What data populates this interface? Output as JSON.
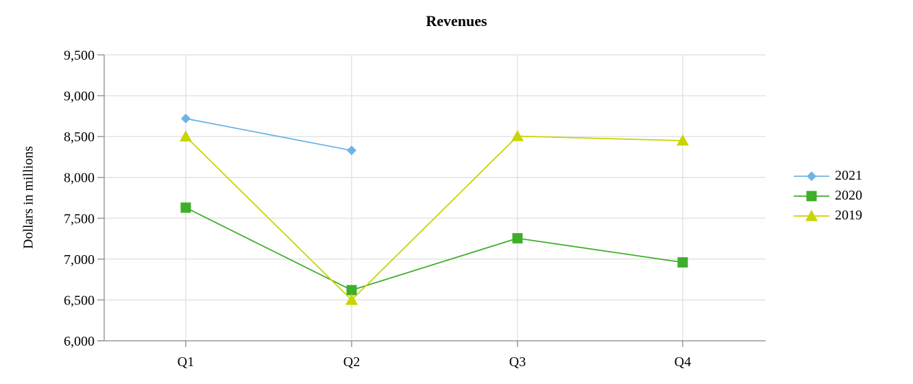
{
  "chart_data": {
    "type": "line",
    "title": "Revenues",
    "xlabel": "",
    "ylabel": "Dollars in millions",
    "categories": [
      "Q1",
      "Q2",
      "Q3",
      "Q4"
    ],
    "ylim": [
      6000,
      9500
    ],
    "yticks": [
      6000,
      6500,
      7000,
      7500,
      8000,
      8500,
      9000,
      9500
    ],
    "grid": true,
    "legend_position": "right",
    "series": [
      {
        "name": "2021",
        "color": "#6cb4e4",
        "marker": "diamond",
        "values": [
          8720,
          8330,
          null,
          null
        ]
      },
      {
        "name": "2020",
        "color": "#3fae2a",
        "marker": "square",
        "values": [
          7630,
          6620,
          7255,
          6960
        ]
      },
      {
        "name": "2019",
        "color": "#c9d400",
        "marker": "triangle",
        "values": [
          8500,
          6500,
          8505,
          8450
        ]
      }
    ]
  }
}
